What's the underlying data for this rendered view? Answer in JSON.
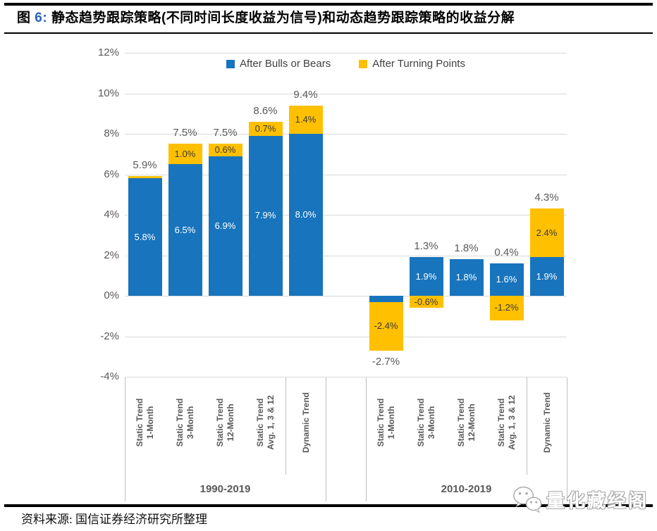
{
  "title": {
    "figure_prefix": "图",
    "figure_number": "6:",
    "text": "静态趋势跟踪策略(不同时间长度收益为信号)和动态趋势跟踪策略的收益分解"
  },
  "source": {
    "text": "资料来源: 国信证券经济研究所整理"
  },
  "watermark": {
    "icon": "wechat-icon",
    "text": "量化藏经阁"
  },
  "colors": {
    "bulls_blue": "#1874BC",
    "turning_yellow": "#FFC000",
    "grid": "#D9D9D9",
    "axis_text": "#595959",
    "figure_number_blue": "#2B62C1"
  },
  "chart_data": {
    "type": "bar",
    "stacked": true,
    "title": "静态趋势跟踪策略(不同时间长度收益为信号)和动态趋势跟踪策略的收益分解",
    "xlabel": "",
    "ylabel": "",
    "ylim": [
      -4,
      12
    ],
    "grid": true,
    "legend_position": "top-center",
    "legend": [
      {
        "name": "After Bulls or Bears",
        "color": "#1874BC"
      },
      {
        "name": "After Turning Points",
        "color": "#FFC000"
      }
    ],
    "y_axis": {
      "ticks": [
        {
          "v": 12,
          "label": "12%"
        },
        {
          "v": 10,
          "label": "10%"
        },
        {
          "v": 8,
          "label": "8%"
        },
        {
          "v": 6,
          "label": "6%"
        },
        {
          "v": 4,
          "label": "4%"
        },
        {
          "v": 2,
          "label": "2%"
        },
        {
          "v": 0,
          "label": "0%"
        },
        {
          "v": -2,
          "label": "-2%"
        },
        {
          "v": -4,
          "label": "-4%"
        }
      ]
    },
    "groups": [
      {
        "label": "1990-2019",
        "bars": [
          {
            "slot": 0,
            "category": "Static Trend\n1-Month",
            "blue": 5.8,
            "yellow": 0.1,
            "total": 5.9,
            "blue_label": "5.8%",
            "yellow_label": "",
            "total_label": "5.9%",
            "total_pos": "above"
          },
          {
            "slot": 1,
            "category": "Static Trend\n3-Month",
            "blue": 6.5,
            "yellow": 1.0,
            "total": 7.5,
            "blue_label": "6.5%",
            "yellow_label": "1.0%",
            "total_label": "7.5%",
            "total_pos": "above"
          },
          {
            "slot": 2,
            "category": "Static Trend\n12-Month",
            "blue": 6.9,
            "yellow": 0.6,
            "total": 7.5,
            "blue_label": "6.9%",
            "yellow_label": "0.6%",
            "total_label": "7.5%",
            "total_pos": "above"
          },
          {
            "slot": 3,
            "category": "Static Trend\nAvg. 1, 3 & 12",
            "blue": 7.9,
            "yellow": 0.7,
            "total": 8.6,
            "blue_label": "7.9%",
            "yellow_label": "0.7%",
            "total_label": "8.6%",
            "total_pos": "above"
          },
          {
            "slot": 4,
            "category": "Dynamic Trend",
            "blue": 8.0,
            "yellow": 1.4,
            "total": 9.4,
            "blue_label": "8.0%",
            "yellow_label": "1.4%",
            "total_label": "9.4%",
            "total_pos": "above"
          }
        ]
      },
      {
        "label": "2010-2019",
        "bars": [
          {
            "slot": 6,
            "category": "Static Trend\n1-Month",
            "blue": -0.3,
            "yellow": -2.4,
            "total": -2.7,
            "blue_label": "",
            "yellow_label": "-2.4%",
            "total_label": "-2.7%",
            "total_pos": "below"
          },
          {
            "slot": 7,
            "category": "Static Trend\n3-Month",
            "blue": 1.9,
            "yellow": -0.6,
            "total": 1.3,
            "blue_label": "1.9%",
            "yellow_label": "-0.6%",
            "total_label": "1.3%",
            "total_pos": "above"
          },
          {
            "slot": 8,
            "category": "Static Trend\n12-Month",
            "blue": 1.8,
            "yellow": 0,
            "total": 1.8,
            "blue_label": "1.8%",
            "yellow_label": "",
            "total_label": "1.8%",
            "total_pos": "above"
          },
          {
            "slot": 9,
            "category": "Static Trend\nAvg. 1, 3 & 12",
            "blue": 1.6,
            "yellow": -1.2,
            "total": 0.4,
            "blue_label": "1.6%",
            "yellow_label": "-1.2%",
            "total_label": "0.4%",
            "total_pos": "above"
          },
          {
            "slot": 10,
            "category": "Dynamic Trend",
            "blue": 1.9,
            "yellow": 2.4,
            "total": 4.3,
            "blue_label": "1.9%",
            "yellow_label": "2.4%",
            "total_label": "4.3%",
            "total_pos": "above"
          }
        ]
      }
    ]
  }
}
